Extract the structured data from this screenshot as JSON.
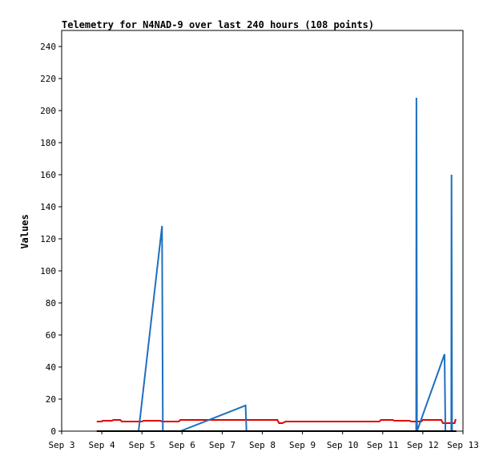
{
  "chart_data": {
    "type": "line",
    "title": "Telemetry for N4NAD-9 over last 240 hours (108 points)",
    "xlabel": "",
    "ylabel": "Values",
    "xlim": [
      "Sep 3",
      "Sep 13"
    ],
    "ylim": [
      0,
      250
    ],
    "x_ticks": [
      "Sep 3",
      "Sep 4",
      "Sep 5",
      "Sep 6",
      "Sep 7",
      "Sep 8",
      "Sep 9",
      "Sep 10",
      "Sep 11",
      "Sep 12",
      "Sep 13"
    ],
    "y_ticks": [
      0,
      20,
      40,
      60,
      80,
      100,
      120,
      140,
      160,
      180,
      200,
      220,
      240
    ],
    "grid": false,
    "legend": "none",
    "series": [
      {
        "color": "#e00000",
        "points": [
          [
            "Sep 3 21:00",
            6
          ],
          [
            "Sep 4 00:00",
            6
          ],
          [
            "Sep 4 00:30",
            6.5
          ],
          [
            "Sep 4 06:00",
            6.5
          ],
          [
            "Sep 4 07:00",
            7
          ],
          [
            "Sep 4 11:00",
            7
          ],
          [
            "Sep 4 12:00",
            6
          ],
          [
            "Sep 5 00:00",
            6
          ],
          [
            "Sep 5 01:00",
            6.5
          ],
          [
            "Sep 5 11:00",
            6.5
          ],
          [
            "Sep 5 12:00",
            6
          ],
          [
            "Sep 5 22:00",
            6
          ],
          [
            "Sep 5 23:00",
            7
          ],
          [
            "Sep 8 09:00",
            7
          ],
          [
            "Sep 8 10:00",
            5
          ],
          [
            "Sep 8 12:00",
            5
          ],
          [
            "Sep 8 14:00",
            6
          ],
          [
            "Sep 10 22:00",
            6
          ],
          [
            "Sep 10 23:00",
            7
          ],
          [
            "Sep 11 06:00",
            7
          ],
          [
            "Sep 11 07:00",
            6.5
          ],
          [
            "Sep 11 16:00",
            6.5
          ],
          [
            "Sep 11 17:00",
            6
          ],
          [
            "Sep 11 23:00",
            6
          ],
          [
            "Sep 12 00:00",
            7
          ],
          [
            "Sep 12 11:00",
            7
          ],
          [
            "Sep 12 12:00",
            5
          ],
          [
            "Sep 12 19:00",
            5
          ],
          [
            "Sep 12 19:30",
            7
          ],
          [
            "Sep 12 20:00",
            7
          ]
        ]
      },
      {
        "color": "#1f6fbf",
        "points": [
          [
            "Sep 4 22:00",
            0
          ],
          [
            "Sep 5 12:00",
            128
          ],
          [
            "Sep 5 12:30",
            0
          ],
          [
            "Sep 5 23:00",
            0
          ],
          [
            "Sep 7 14:00",
            16
          ],
          [
            "Sep 7 14:30",
            0
          ],
          [
            "Sep 11 20:00",
            0
          ],
          [
            "Sep 11 20:10",
            208
          ],
          [
            "Sep 11 20:30",
            0
          ],
          [
            "Sep 12 13:00",
            48
          ],
          [
            "Sep 12 13:30",
            0
          ],
          [
            "Sep 12 17:00",
            0
          ],
          [
            "Sep 12 17:10",
            160
          ],
          [
            "Sep 12 17:30",
            0
          ]
        ]
      },
      {
        "color": "#000000",
        "points": [
          [
            "Sep 3 21:00",
            0
          ],
          [
            "Sep 12 20:00",
            0
          ]
        ]
      }
    ]
  }
}
